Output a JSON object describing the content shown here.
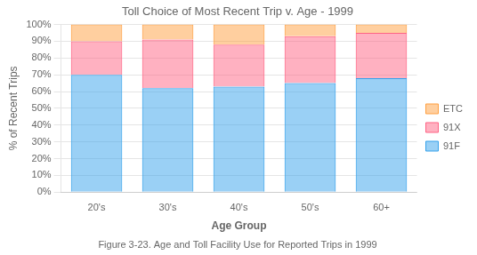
{
  "chart_data": {
    "type": "bar",
    "stacked": true,
    "title": "Toll Choice of Most Recent Trip v. Age - 1999",
    "caption": "Figure 3-23. Age and Toll Facility Use for Reported Trips in 1999",
    "xlabel": "Age Group",
    "ylabel": "% of Recent Trips",
    "categories": [
      "20's",
      "30's",
      "40's",
      "50's",
      "60+"
    ],
    "series": [
      {
        "name": "91F",
        "values": [
          0.7,
          0.62,
          0.63,
          0.65,
          0.68
        ]
      },
      {
        "name": "91X",
        "values": [
          0.2,
          0.29,
          0.25,
          0.28,
          0.27
        ]
      },
      {
        "name": "ETC",
        "values": [
          0.1,
          0.09,
          0.12,
          0.07,
          0.05
        ]
      }
    ],
    "ylim": [
      0,
      1.0
    ],
    "yticks": [
      {
        "value": 0.0,
        "label": "0%"
      },
      {
        "value": 0.1,
        "label": "10%"
      },
      {
        "value": 0.2,
        "label": "20%"
      },
      {
        "value": 0.3,
        "label": "30%"
      },
      {
        "value": 0.4,
        "label": "40%"
      },
      {
        "value": 0.5,
        "label": "50%"
      },
      {
        "value": 0.6,
        "label": "60%"
      },
      {
        "value": 0.7,
        "label": "70%"
      },
      {
        "value": 0.8,
        "label": "80%"
      },
      {
        "value": 0.9,
        "label": "90%"
      },
      {
        "value": 1.0,
        "label": "100%"
      }
    ],
    "grid": true,
    "legend": "right"
  }
}
